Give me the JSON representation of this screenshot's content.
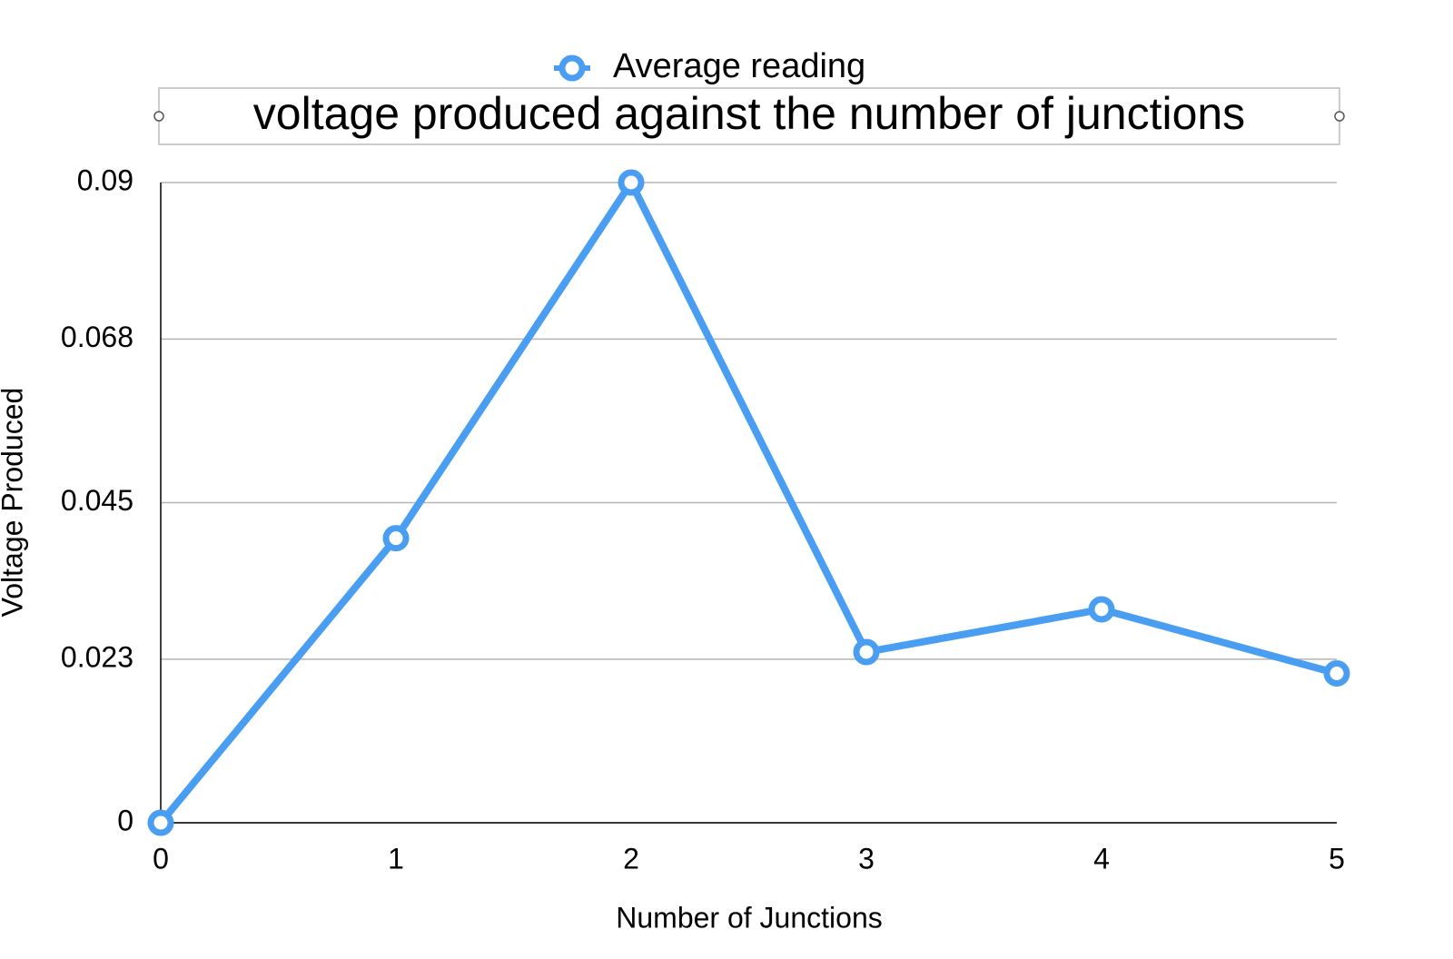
{
  "chart_data": {
    "type": "line",
    "title": "voltage produced against the number of junctions",
    "x_label": "Number of Junctions",
    "y_label": "Voltage Produced",
    "x": [
      0,
      1,
      2,
      3,
      4,
      5
    ],
    "series": [
      {
        "name": "Average reading",
        "color": "#4a9ef2",
        "values": [
          0,
          0.04,
          0.09,
          0.024,
          0.03,
          0.021
        ]
      }
    ],
    "xlim": [
      0,
      5
    ],
    "xticks": [
      0,
      1,
      2,
      3,
      4,
      5
    ],
    "ylim": [
      0,
      0.09
    ],
    "yticks": [
      0,
      0.023,
      0.045,
      0.068,
      0.09
    ],
    "grid": true,
    "legend": "top"
  }
}
